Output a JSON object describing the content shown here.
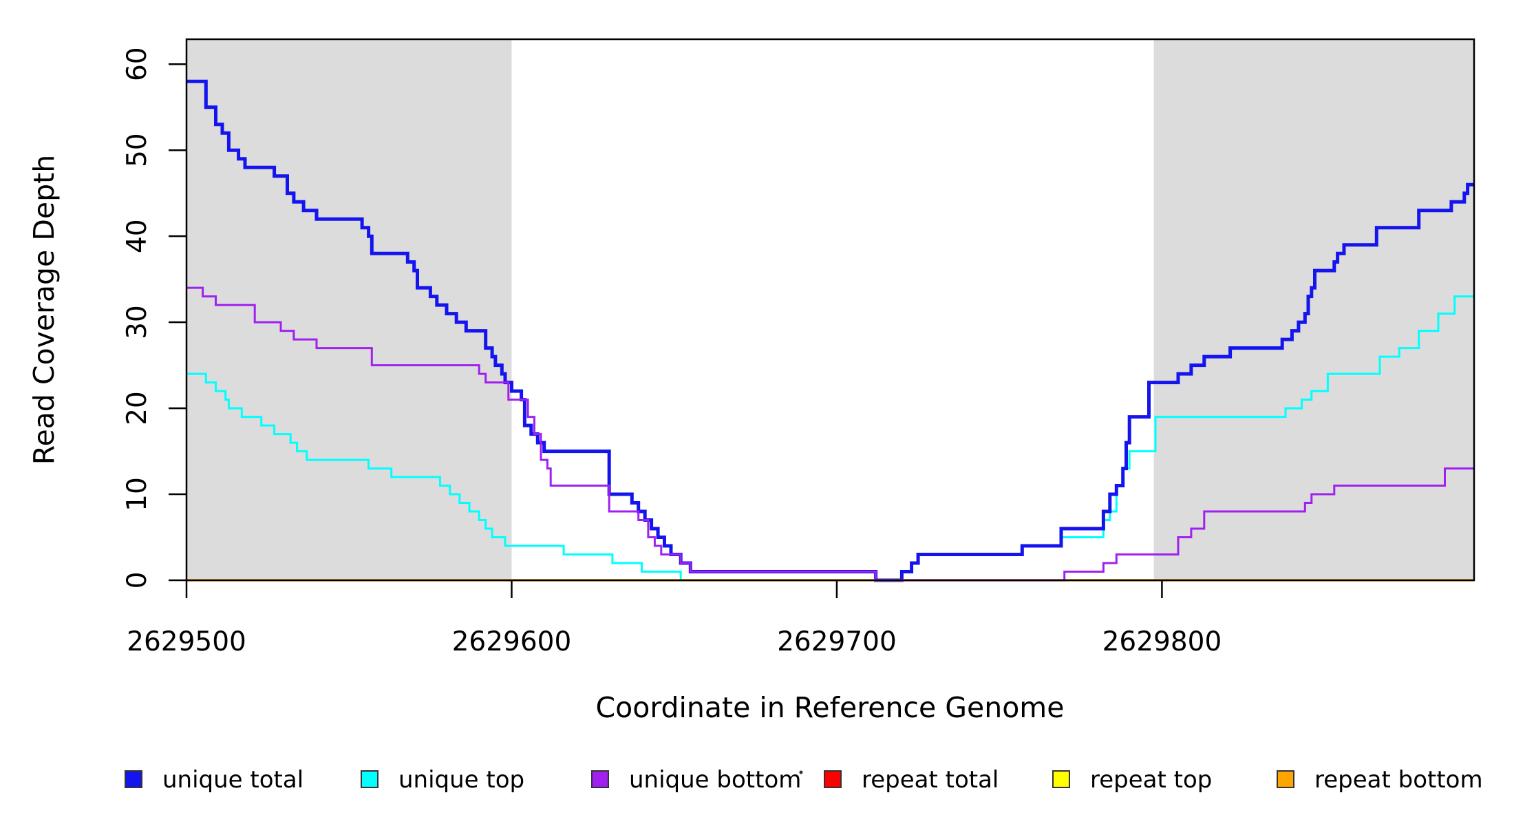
{
  "figure": {
    "background": "#ffffff"
  },
  "chart_data": {
    "type": "line",
    "subtype": "step-after",
    "title": "",
    "xlabel": "Coordinate in Reference Genome",
    "ylabel": "Read Coverage Depth",
    "xlim": [
      2629500,
      2629896
    ],
    "ylim": [
      0,
      62.9
    ],
    "x_ticks": [
      2629500,
      2629600,
      2629700,
      2629800
    ],
    "y_ticks": [
      0,
      10,
      20,
      30,
      40,
      50,
      60
    ],
    "grid": false,
    "legend_position": "bottom",
    "axis_color": "#000000",
    "shaded_regions": [
      {
        "x0": 2629500,
        "x1": 2629600,
        "color": "#DCDCDC"
      },
      {
        "x0": 2629797.5,
        "x1": 2629896,
        "color": "#DCDCDC"
      }
    ],
    "series": [
      {
        "name": "repeat total",
        "color": "#FF0000",
        "width": 3,
        "points": [
          [
            2629500,
            0
          ]
        ]
      },
      {
        "name": "repeat top",
        "color": "#FFFF00",
        "width": 3,
        "points": [
          [
            2629500,
            0
          ]
        ]
      },
      {
        "name": "unique top",
        "color": "#00FFFF",
        "width": 3,
        "points": [
          [
            2629500,
            24
          ],
          [
            2629506,
            23
          ],
          [
            2629509,
            22
          ],
          [
            2629512,
            21
          ],
          [
            2629513,
            20
          ],
          [
            2629517,
            19
          ],
          [
            2629523,
            18
          ],
          [
            2629527,
            17
          ],
          [
            2629532,
            16
          ],
          [
            2629534,
            15
          ],
          [
            2629537,
            14
          ],
          [
            2629556,
            13
          ],
          [
            2629563,
            12
          ],
          [
            2629578,
            11
          ],
          [
            2629581,
            10
          ],
          [
            2629584,
            9
          ],
          [
            2629587,
            8
          ],
          [
            2629590,
            7
          ],
          [
            2629592,
            6
          ],
          [
            2629594,
            5
          ],
          [
            2629598,
            4
          ],
          [
            2629616,
            3
          ],
          [
            2629631,
            2
          ],
          [
            2629640,
            1
          ],
          [
            2629652,
            0
          ],
          [
            2629720,
            1
          ],
          [
            2629723,
            2
          ],
          [
            2629725,
            3
          ],
          [
            2629757,
            4
          ],
          [
            2629769,
            5
          ],
          [
            2629782,
            7
          ],
          [
            2629784,
            8
          ],
          [
            2629786,
            11
          ],
          [
            2629788,
            13
          ],
          [
            2629790,
            15
          ],
          [
            2629798,
            19
          ],
          [
            2629838,
            20
          ],
          [
            2629843,
            21
          ],
          [
            2629846,
            22
          ],
          [
            2629851,
            24
          ],
          [
            2629867,
            26
          ],
          [
            2629873,
            27
          ],
          [
            2629879,
            29
          ],
          [
            2629885,
            31
          ],
          [
            2629890,
            33
          ]
        ]
      },
      {
        "name": "unique total",
        "color": "#1414EE",
        "width": 5,
        "points": [
          [
            2629500,
            58
          ],
          [
            2629506,
            55
          ],
          [
            2629509,
            53
          ],
          [
            2629511,
            52
          ],
          [
            2629513,
            50
          ],
          [
            2629516,
            49
          ],
          [
            2629518,
            48
          ],
          [
            2629527,
            47
          ],
          [
            2629531,
            45
          ],
          [
            2629533,
            44
          ],
          [
            2629536,
            43
          ],
          [
            2629540,
            42
          ],
          [
            2629554,
            41
          ],
          [
            2629556,
            40
          ],
          [
            2629557,
            38
          ],
          [
            2629568,
            37
          ],
          [
            2629570,
            36
          ],
          [
            2629571,
            34
          ],
          [
            2629575,
            33
          ],
          [
            2629577,
            32
          ],
          [
            2629580,
            31
          ],
          [
            2629583,
            30
          ],
          [
            2629586,
            29
          ],
          [
            2629592,
            27
          ],
          [
            2629594,
            26
          ],
          [
            2629595,
            25
          ],
          [
            2629597,
            24
          ],
          [
            2629598,
            23
          ],
          [
            2629600,
            22
          ],
          [
            2629603,
            21
          ],
          [
            2629604,
            18
          ],
          [
            2629606,
            17
          ],
          [
            2629608,
            16
          ],
          [
            2629610,
            15
          ],
          [
            2629630,
            10
          ],
          [
            2629637,
            9
          ],
          [
            2629639,
            8
          ],
          [
            2629641,
            7
          ],
          [
            2629643,
            6
          ],
          [
            2629645,
            5
          ],
          [
            2629647,
            4
          ],
          [
            2629649,
            3
          ],
          [
            2629652,
            2
          ],
          [
            2629655,
            1
          ],
          [
            2629712,
            0
          ],
          [
            2629720,
            1
          ],
          [
            2629723,
            2
          ],
          [
            2629725,
            3
          ],
          [
            2629757,
            4
          ],
          [
            2629769,
            6
          ],
          [
            2629782,
            8
          ],
          [
            2629784,
            10
          ],
          [
            2629786,
            11
          ],
          [
            2629788,
            13
          ],
          [
            2629789,
            16
          ],
          [
            2629790,
            19
          ],
          [
            2629796,
            23
          ],
          [
            2629805,
            24
          ],
          [
            2629809,
            25
          ],
          [
            2629813,
            26
          ],
          [
            2629821,
            27
          ],
          [
            2629837,
            28
          ],
          [
            2629840,
            29
          ],
          [
            2629842,
            30
          ],
          [
            2629844,
            31
          ],
          [
            2629845,
            33
          ],
          [
            2629846,
            34
          ],
          [
            2629847,
            36
          ],
          [
            2629853,
            37
          ],
          [
            2629854,
            38
          ],
          [
            2629856,
            39
          ],
          [
            2629866,
            41
          ],
          [
            2629879,
            43
          ],
          [
            2629889,
            44
          ],
          [
            2629893,
            45
          ],
          [
            2629894,
            46
          ]
        ]
      },
      {
        "name": "repeat bottom",
        "color": "#FFA500",
        "width": 3.5,
        "points": [
          [
            2629500,
            0
          ]
        ]
      },
      {
        "name": "unique bottom",
        "color": "#A020F0",
        "width": 3,
        "points": [
          [
            2629500,
            34
          ],
          [
            2629505,
            33
          ],
          [
            2629509,
            32
          ],
          [
            2629521,
            30
          ],
          [
            2629529,
            29
          ],
          [
            2629533,
            28
          ],
          [
            2629540,
            27
          ],
          [
            2629557,
            25
          ],
          [
            2629590,
            24
          ],
          [
            2629592,
            23
          ],
          [
            2629599,
            21
          ],
          [
            2629605,
            19
          ],
          [
            2629607,
            17
          ],
          [
            2629609,
            14
          ],
          [
            2629611,
            13
          ],
          [
            2629612,
            11
          ],
          [
            2629630,
            8
          ],
          [
            2629639,
            7
          ],
          [
            2629642,
            5
          ],
          [
            2629644,
            4
          ],
          [
            2629646,
            3
          ],
          [
            2629652,
            2
          ],
          [
            2629655,
            1
          ],
          [
            2629712,
            0
          ],
          [
            2629770,
            1
          ],
          [
            2629782,
            2
          ],
          [
            2629786,
            3
          ],
          [
            2629805,
            5
          ],
          [
            2629809,
            6
          ],
          [
            2629813,
            8
          ],
          [
            2629844,
            9
          ],
          [
            2629846,
            10
          ],
          [
            2629853,
            11
          ],
          [
            2629887,
            13
          ]
        ]
      }
    ],
    "legend": {
      "entries": [
        {
          "label": "unique total",
          "color": "#1414EE"
        },
        {
          "label": "unique top",
          "color": "#00FFFF"
        },
        {
          "label": "unique bottom",
          "color": "#A020F0"
        },
        {
          "label": "repeat total",
          "color": "#FF0000"
        },
        {
          "label": "repeat top",
          "color": "#FFFF00"
        },
        {
          "label": "repeat bottom",
          "color": "#FFA500"
        }
      ]
    }
  }
}
